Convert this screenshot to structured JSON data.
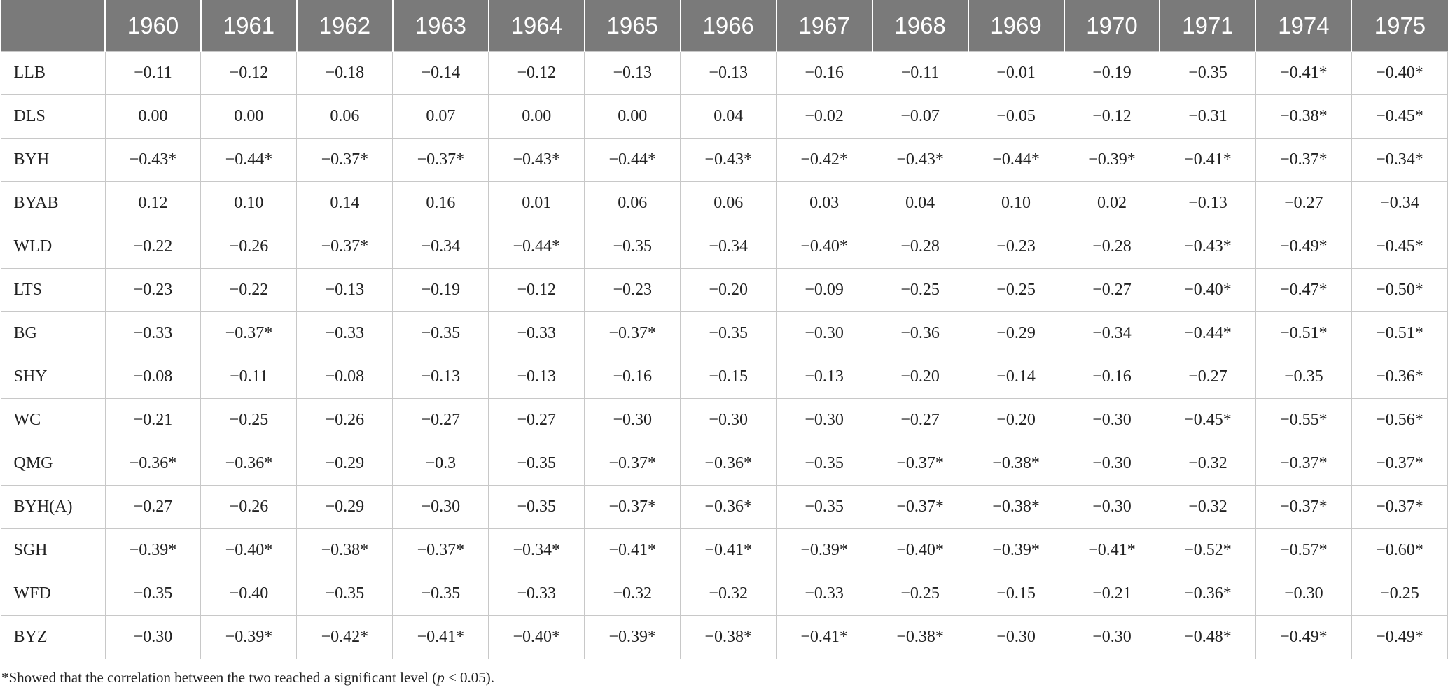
{
  "table": {
    "header": [
      "1960",
      "1961",
      "1962",
      "1963",
      "1964",
      "1965",
      "1966",
      "1967",
      "1968",
      "1969",
      "1970",
      "1971",
      "1974",
      "1975"
    ],
    "rows": [
      {
        "label": "LLB",
        "cells": [
          "−0.11",
          "−0.12",
          "−0.18",
          "−0.14",
          "−0.12",
          "−0.13",
          "−0.13",
          "−0.16",
          "−0.11",
          "−0.01",
          "−0.19",
          "−0.35",
          "−0.41*",
          "−0.40*"
        ]
      },
      {
        "label": "DLS",
        "cells": [
          "0.00",
          "0.00",
          "0.06",
          "0.07",
          "0.00",
          "0.00",
          "0.04",
          "−0.02",
          "−0.07",
          "−0.05",
          "−0.12",
          "−0.31",
          "−0.38*",
          "−0.45*"
        ]
      },
      {
        "label": "BYH",
        "cells": [
          "−0.43*",
          "−0.44*",
          "−0.37*",
          "−0.37*",
          "−0.43*",
          "−0.44*",
          "−0.43*",
          "−0.42*",
          "−0.43*",
          "−0.44*",
          "−0.39*",
          "−0.41*",
          "−0.37*",
          "−0.34*"
        ]
      },
      {
        "label": "BYAB",
        "cells": [
          "0.12",
          "0.10",
          "0.14",
          "0.16",
          "0.01",
          "0.06",
          "0.06",
          "0.03",
          "0.04",
          "0.10",
          "0.02",
          "−0.13",
          "−0.27",
          "−0.34"
        ]
      },
      {
        "label": "WLD",
        "cells": [
          "−0.22",
          "−0.26",
          "−0.37*",
          "−0.34",
          "−0.44*",
          "−0.35",
          "−0.34",
          "−0.40*",
          "−0.28",
          "−0.23",
          "−0.28",
          "−0.43*",
          "−0.49*",
          "−0.45*"
        ]
      },
      {
        "label": "LTS",
        "cells": [
          "−0.23",
          "−0.22",
          "−0.13",
          "−0.19",
          "−0.12",
          "−0.23",
          "−0.20",
          "−0.09",
          "−0.25",
          "−0.25",
          "−0.27",
          "−0.40*",
          "−0.47*",
          "−0.50*"
        ]
      },
      {
        "label": "BG",
        "cells": [
          "−0.33",
          "−0.37*",
          "−0.33",
          "−0.35",
          "−0.33",
          "−0.37*",
          "−0.35",
          "−0.30",
          "−0.36",
          "−0.29",
          "−0.34",
          "−0.44*",
          "−0.51*",
          "−0.51*"
        ]
      },
      {
        "label": "SHY",
        "cells": [
          "−0.08",
          "−0.11",
          "−0.08",
          "−0.13",
          "−0.13",
          "−0.16",
          "−0.15",
          "−0.13",
          "−0.20",
          "−0.14",
          "−0.16",
          "−0.27",
          "−0.35",
          "−0.36*"
        ]
      },
      {
        "label": "WC",
        "cells": [
          "−0.21",
          "−0.25",
          "−0.26",
          "−0.27",
          "−0.27",
          "−0.30",
          "−0.30",
          "−0.30",
          "−0.27",
          "−0.20",
          "−0.30",
          "−0.45*",
          "−0.55*",
          "−0.56*"
        ]
      },
      {
        "label": "QMG",
        "cells": [
          "−0.36*",
          "−0.36*",
          "−0.29",
          "−0.3",
          "−0.35",
          "−0.37*",
          "−0.36*",
          "−0.35",
          "−0.37*",
          "−0.38*",
          "−0.30",
          "−0.32",
          "−0.37*",
          "−0.37*"
        ]
      },
      {
        "label": "BYH(A)",
        "cells": [
          "−0.27",
          "−0.26",
          "−0.29",
          "−0.30",
          "−0.35",
          "−0.37*",
          "−0.36*",
          "−0.35",
          "−0.37*",
          "−0.38*",
          "−0.30",
          "−0.32",
          "−0.37*",
          "−0.37*"
        ]
      },
      {
        "label": "SGH",
        "cells": [
          "−0.39*",
          "−0.40*",
          "−0.38*",
          "−0.37*",
          "−0.34*",
          "−0.41*",
          "−0.41*",
          "−0.39*",
          "−0.40*",
          "−0.39*",
          "−0.41*",
          "−0.52*",
          "−0.57*",
          "−0.60*"
        ]
      },
      {
        "label": "WFD",
        "cells": [
          "−0.35",
          "−0.40",
          "−0.35",
          "−0.35",
          "−0.33",
          "−0.32",
          "−0.32",
          "−0.33",
          "−0.25",
          "−0.15",
          "−0.21",
          "−0.36*",
          "−0.30",
          "−0.25"
        ]
      },
      {
        "label": "BYZ",
        "cells": [
          "−0.30",
          "−0.39*",
          "−0.42*",
          "−0.41*",
          "−0.40*",
          "−0.39*",
          "−0.38*",
          "−0.41*",
          "−0.38*",
          "−0.30",
          "−0.30",
          "−0.48*",
          "−0.49*",
          "−0.49*"
        ]
      }
    ]
  },
  "footnote": {
    "before": "*Showed that the correlation between the two reached a significant level (",
    "p": "p",
    "after": " < 0.05)."
  }
}
